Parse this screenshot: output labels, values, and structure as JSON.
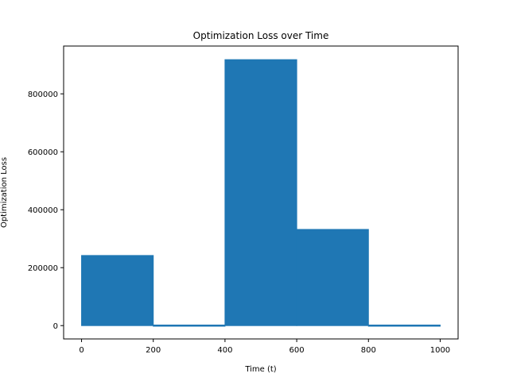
{
  "chart_data": {
    "type": "area",
    "title": "Optimization Loss over Time",
    "xlabel": "Time (t)",
    "ylabel": "Optimization Loss",
    "xlim": [
      -50,
      1050
    ],
    "ylim": [
      -46000,
      965000
    ],
    "xticks": [
      0,
      200,
      400,
      600,
      800,
      1000
    ],
    "xtick_labels": [
      "0",
      "200",
      "400",
      "600",
      "800",
      "1000"
    ],
    "yticks": [
      0,
      200000,
      400000,
      600000,
      800000
    ],
    "ytick_labels": [
      "0",
      "200000",
      "400000",
      "600000",
      "800000"
    ],
    "grid": false,
    "color": "#1f77b4",
    "series": [
      {
        "segments": [
          {
            "x_start": 0,
            "x_end": 200,
            "y_min": 0,
            "y_max": 242000
          },
          {
            "x_start": 200,
            "x_end": 400,
            "y_min": 0,
            "y_max": 2000
          },
          {
            "x_start": 400,
            "x_end": 600,
            "y_min": 0,
            "y_max": 918000
          },
          {
            "x_start": 600,
            "x_end": 800,
            "y_min": 0,
            "y_max": 332000
          },
          {
            "x_start": 800,
            "x_end": 1000,
            "y_min": 0,
            "y_max": 2000
          }
        ]
      }
    ]
  }
}
